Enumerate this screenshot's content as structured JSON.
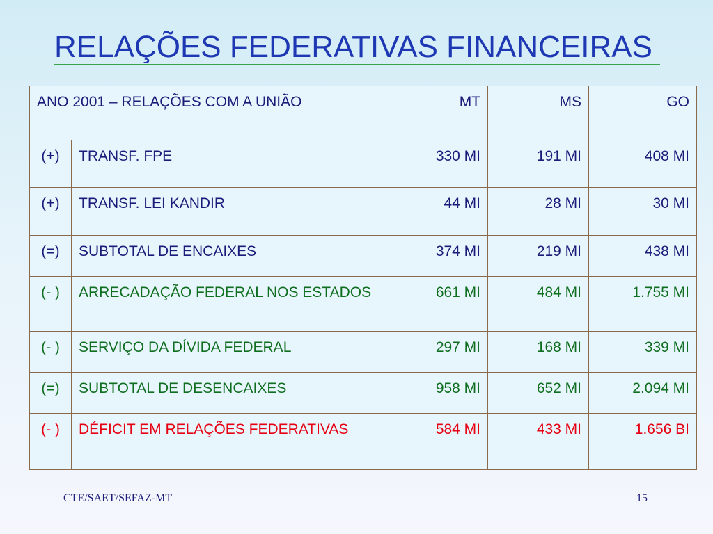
{
  "slide": {
    "title": "RELAÇÕES FEDERATIVAS FINANCEIRAS",
    "footer_left": "CTE/SAET/SEFAZ-MT",
    "footer_right": "15"
  },
  "colors": {
    "title": "#1e38b4",
    "underline": "#3aa34c",
    "text_default": "#1b1b7a",
    "text_green": "#0f6e1f",
    "text_red": "#e60012",
    "border": "#8a6a4a",
    "table_bg": "#e7f5fc"
  },
  "table": {
    "header": {
      "label": "ANO 2001 – RELAÇÕES COM A UNIÃO",
      "col1": "MT",
      "col2": "MS",
      "col3": "GO"
    },
    "rows": [
      {
        "sign": "(+)",
        "label": "TRANSF. FPE",
        "mt": "330 MI",
        "ms": "191 MI",
        "go": "408 MI"
      },
      {
        "sign": "(+)",
        "label": "TRANSF. LEI KANDIR",
        "mt": "44 MI",
        "ms": "28 MI",
        "go": "30 MI"
      },
      {
        "sign": "(=)",
        "label": "SUBTOTAL DE ENCAIXES",
        "mt": "374 MI",
        "ms": "219 MI",
        "go": "438 MI"
      },
      {
        "sign": "(- )",
        "label": "ARRECADAÇÃO FEDERAL NOS ESTADOS",
        "mt": "661 MI",
        "ms": "484 MI",
        "go": "1.755 MI"
      },
      {
        "sign": "(- )",
        "label": "SERVIÇO DA DÍVIDA FEDERAL",
        "mt": "297 MI",
        "ms": "168 MI",
        "go": "339 MI"
      },
      {
        "sign": "(=)",
        "label": "SUBTOTAL DE DESENCAIXES",
        "mt": "958 MI",
        "ms": "652 MI",
        "go": "2.094 MI"
      },
      {
        "sign": "(- )",
        "label": "DÉFICIT EM RELAÇÕES FEDERATIVAS",
        "mt": "584 MI",
        "ms": "433 MI",
        "go": "1.656 BI"
      }
    ]
  }
}
